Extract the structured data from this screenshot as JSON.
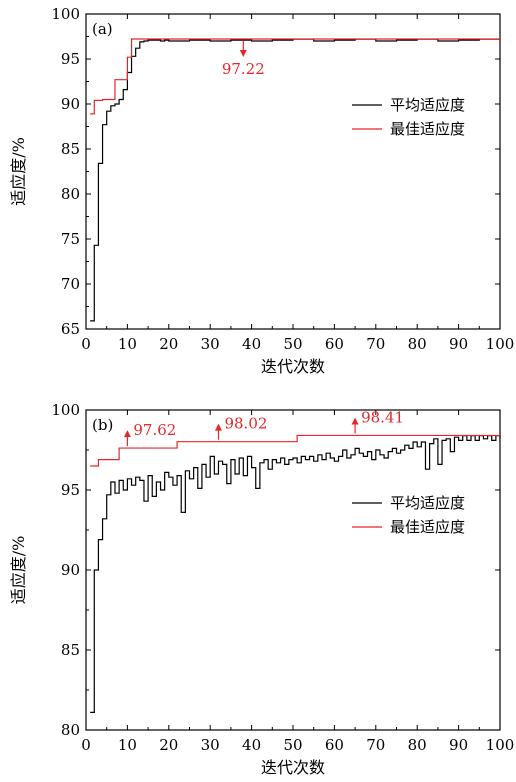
{
  "chart_data": [
    {
      "type": "line",
      "panel_label": "(a)",
      "xlabel": "迭代次数",
      "ylabel": "适应度/%",
      "xlim": [
        0,
        100
      ],
      "ylim": [
        65,
        100
      ],
      "xticks": [
        0,
        10,
        20,
        30,
        40,
        50,
        60,
        70,
        80,
        90,
        100
      ],
      "yticks": [
        65,
        70,
        75,
        80,
        85,
        90,
        95,
        100
      ],
      "legend_position": "right",
      "series": [
        {
          "name": "平均适应度",
          "color": "#000000",
          "step": true,
          "x": [
            1,
            2,
            3,
            4,
            5,
            6,
            7,
            8,
            9,
            10,
            11,
            12,
            13,
            14,
            15,
            16,
            17,
            18,
            19,
            20,
            25,
            30,
            35,
            40,
            45,
            50,
            55,
            60,
            65,
            70,
            75,
            80,
            85,
            90,
            95,
            100
          ],
          "y": [
            65.9,
            74.3,
            83.4,
            87.7,
            89.2,
            89.8,
            90.0,
            90.5,
            91.6,
            93.5,
            95.3,
            96.2,
            96.9,
            97.0,
            97.1,
            97.1,
            97.1,
            97.0,
            97.1,
            97.0,
            97.1,
            97.0,
            97.1,
            97.0,
            97.1,
            97.2,
            97.0,
            97.1,
            97.2,
            97.0,
            97.1,
            97.2,
            97.0,
            97.1,
            97.2,
            97.2
          ]
        },
        {
          "name": "最佳适应度",
          "color": "#e8262a",
          "step": true,
          "x": [
            1,
            2,
            4,
            7,
            10,
            11,
            100
          ],
          "y": [
            88.9,
            90.4,
            90.5,
            92.7,
            95.2,
            97.22,
            97.22
          ]
        }
      ],
      "annotations": [
        {
          "text": "97.22",
          "x": 38,
          "y": 97.22,
          "direction": "down",
          "color": "#e8262a"
        }
      ]
    },
    {
      "type": "line",
      "panel_label": "(b)",
      "xlabel": "迭代次数",
      "ylabel": "适应度/%",
      "xlim": [
        0,
        100
      ],
      "ylim": [
        80,
        100
      ],
      "xticks": [
        0,
        10,
        20,
        30,
        40,
        50,
        60,
        70,
        80,
        90,
        100
      ],
      "yticks": [
        80,
        85,
        90,
        95,
        100
      ],
      "legend_position": "right",
      "series": [
        {
          "name": "平均适应度",
          "color": "#000000",
          "step": true,
          "x": [
            1,
            2,
            3,
            4,
            5,
            6,
            7,
            8,
            9,
            10,
            11,
            12,
            13,
            14,
            15,
            16,
            17,
            18,
            19,
            20,
            21,
            22,
            23,
            24,
            25,
            26,
            27,
            28,
            29,
            30,
            31,
            32,
            33,
            34,
            35,
            36,
            37,
            38,
            39,
            40,
            41,
            42,
            43,
            44,
            45,
            46,
            47,
            48,
            49,
            50,
            51,
            52,
            53,
            54,
            55,
            56,
            57,
            58,
            59,
            60,
            61,
            62,
            63,
            64,
            65,
            66,
            67,
            68,
            69,
            70,
            71,
            72,
            73,
            74,
            75,
            76,
            77,
            78,
            79,
            80,
            81,
            82,
            83,
            84,
            85,
            86,
            87,
            88,
            89,
            90,
            91,
            92,
            93,
            94,
            95,
            96,
            97,
            98,
            99,
            100
          ],
          "y": [
            81.1,
            90.0,
            91.9,
            93.2,
            94.7,
            95.5,
            94.8,
            95.6,
            95.0,
            95.7,
            95.3,
            95.8,
            95.6,
            94.3,
            95.9,
            94.6,
            95.5,
            95.0,
            96.1,
            95.8,
            95.3,
            95.9,
            93.6,
            96.2,
            95.7,
            96.4,
            95.1,
            96.6,
            95.8,
            97.1,
            96.0,
            96.8,
            96.6,
            95.4,
            96.9,
            96.0,
            97.0,
            95.9,
            97.1,
            96.4,
            95.1,
            96.7,
            96.9,
            96.3,
            96.9,
            96.7,
            97.0,
            96.6,
            96.9,
            97.0,
            96.7,
            97.1,
            96.9,
            97.1,
            96.8,
            97.2,
            96.9,
            97.3,
            97.0,
            96.8,
            97.1,
            97.5,
            97.0,
            97.2,
            97.6,
            97.3,
            97.1,
            97.4,
            96.9,
            97.5,
            97.2,
            97.0,
            97.4,
            97.6,
            97.3,
            97.5,
            97.8,
            97.6,
            98.0,
            97.7,
            98.0,
            96.3,
            97.9,
            98.2,
            96.6,
            98.1,
            98.2,
            97.4,
            98.3,
            98.1,
            98.4,
            98.1,
            98.4,
            98.1,
            98.4,
            98.2,
            98.4,
            98.1,
            98.4,
            98.2
          ]
        },
        {
          "name": "最佳适应度",
          "color": "#e8262a",
          "step": true,
          "x": [
            1,
            3,
            8,
            22,
            51,
            100
          ],
          "y": [
            96.5,
            96.9,
            97.62,
            98.02,
            98.41,
            98.41
          ]
        }
      ],
      "annotations": [
        {
          "text": "97.62",
          "x": 10,
          "y": 97.62,
          "direction": "up",
          "color": "#e8262a"
        },
        {
          "text": "98.02",
          "x": 32,
          "y": 98.02,
          "direction": "up",
          "color": "#e8262a"
        },
        {
          "text": "98.41",
          "x": 65,
          "y": 98.41,
          "direction": "up",
          "color": "#e8262a"
        }
      ]
    }
  ]
}
